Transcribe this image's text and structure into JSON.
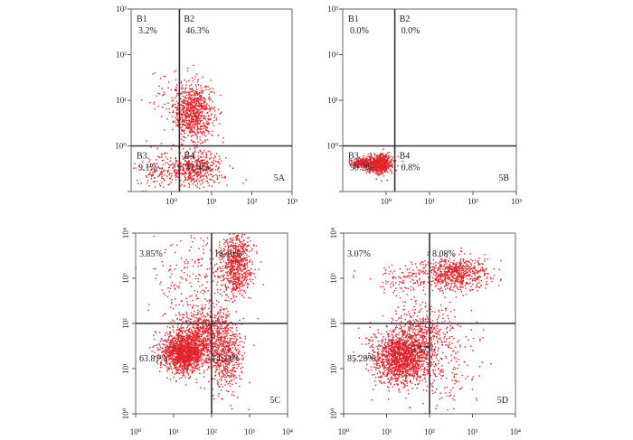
{
  "chart_data": [
    {
      "type": "scatter",
      "id": "5A",
      "axis_labels_style": "horizontal",
      "xlim": [
        -1,
        3
      ],
      "ylim": [
        -1,
        3
      ],
      "x_ticks": [
        "10⁰",
        "10¹",
        "10²",
        "10³"
      ],
      "y_ticks": [
        "10⁻¹",
        "10⁰",
        "10¹",
        "10²",
        "10³"
      ],
      "y_ticks_shown": [
        "",
        "10⁰",
        "10¹",
        "10²",
        "10³"
      ],
      "gate": {
        "x": 0.2,
        "y": 0.0
      },
      "quadrants": [
        {
          "label": "B1",
          "percent": "3.2%"
        },
        {
          "label": "B2",
          "percent": "46.3%"
        },
        {
          "label": "B3",
          "percent": "9.1%"
        },
        {
          "label": "B4",
          "percent": "41.4%"
        }
      ],
      "clusters": [
        {
          "cx": 0.55,
          "cy": 0.75,
          "sx": 0.25,
          "sy": 0.32,
          "n": 820
        },
        {
          "cx": 0.6,
          "cy": -0.5,
          "sx": 0.35,
          "sy": 0.18,
          "n": 480
        },
        {
          "cx": -0.35,
          "cy": -0.55,
          "sx": 0.25,
          "sy": 0.2,
          "n": 120
        },
        {
          "cx": -0.2,
          "cy": 1.2,
          "sx": 0.2,
          "sy": 0.25,
          "n": 30
        }
      ]
    },
    {
      "type": "scatter",
      "id": "5B",
      "xlim": [
        -1,
        3
      ],
      "ylim": [
        -1,
        3
      ],
      "x_ticks": [
        "10⁰",
        "10¹",
        "10²",
        "10³"
      ],
      "y_ticks_shown": [
        "",
        "10⁰",
        "10¹",
        "10²",
        "10³"
      ],
      "gate": {
        "x": 0.2,
        "y": 0.0
      },
      "quadrants": [
        {
          "label": "B1",
          "percent": "0.0%"
        },
        {
          "label": "B2",
          "percent": "0.0%"
        },
        {
          "label": "B3",
          "percent": "99.2%"
        },
        {
          "label": "B4",
          "percent": "0.8%"
        }
      ],
      "clusters": [
        {
          "cx": -0.15,
          "cy": -0.4,
          "sx": 0.14,
          "sy": 0.1,
          "n": 700
        },
        {
          "cx": -0.55,
          "cy": -0.37,
          "sx": 0.12,
          "sy": 0.05,
          "n": 260
        }
      ]
    },
    {
      "type": "scatter",
      "id": "5C",
      "xlim": [
        0,
        4
      ],
      "ylim": [
        0,
        4
      ],
      "x_ticks": [
        "10⁰",
        "10¹",
        "10²",
        "10³",
        "10⁴"
      ],
      "y_ticks_shown": [
        "10⁰",
        "10¹",
        "10²",
        "10³",
        "10⁴"
      ],
      "gate": {
        "x": 2.0,
        "y": 2.0
      },
      "quadrants": [
        {
          "label": "",
          "percent": "3.85%"
        },
        {
          "label": "",
          "percent": "18.10%"
        },
        {
          "label": "",
          "percent": "63.81%"
        },
        {
          "label": "",
          "percent": "14.24%"
        }
      ],
      "clusters": [
        {
          "cx": 1.25,
          "cy": 1.35,
          "sx": 0.28,
          "sy": 0.22,
          "n": 1400
        },
        {
          "cx": 1.8,
          "cy": 1.75,
          "sx": 0.35,
          "sy": 0.35,
          "n": 700
        },
        {
          "cx": 2.35,
          "cy": 1.35,
          "sx": 0.25,
          "sy": 0.4,
          "n": 500
        },
        {
          "cx": 2.65,
          "cy": 3.3,
          "sx": 0.22,
          "sy": 0.35,
          "n": 700
        },
        {
          "cx": 1.4,
          "cy": 3.0,
          "sx": 0.5,
          "sy": 0.6,
          "n": 200
        }
      ]
    },
    {
      "type": "scatter",
      "id": "5D",
      "xlim": [
        0,
        4
      ],
      "ylim": [
        0,
        4
      ],
      "x_ticks": [
        "10⁰",
        "10¹",
        "10²",
        "10³",
        "10⁴"
      ],
      "y_ticks_shown": [
        "10⁰",
        "10¹",
        "10²",
        "10³",
        "10⁴"
      ],
      "gate": {
        "x": 2.0,
        "y": 2.0
      },
      "quadrants": [
        {
          "label": "",
          "percent": "3.07%"
        },
        {
          "label": "",
          "percent": "8.08%"
        },
        {
          "label": "",
          "percent": "85.28%"
        },
        {
          "label": "",
          "percent": "3.57%"
        }
      ],
      "clusters": [
        {
          "cx": 1.35,
          "cy": 1.25,
          "sx": 0.35,
          "sy": 0.3,
          "n": 1600
        },
        {
          "cx": 1.9,
          "cy": 1.85,
          "sx": 0.35,
          "sy": 0.3,
          "n": 350
        },
        {
          "cx": 2.65,
          "cy": 3.1,
          "sx": 0.35,
          "sy": 0.18,
          "n": 650
        },
        {
          "cx": 1.6,
          "cy": 3.0,
          "sx": 0.45,
          "sy": 0.2,
          "n": 160
        },
        {
          "cx": 2.4,
          "cy": 1.0,
          "sx": 0.4,
          "sy": 0.5,
          "n": 160
        }
      ]
    }
  ],
  "colors": {
    "dots": "#e0242b",
    "frame": "#666666",
    "gate": "#333333"
  }
}
